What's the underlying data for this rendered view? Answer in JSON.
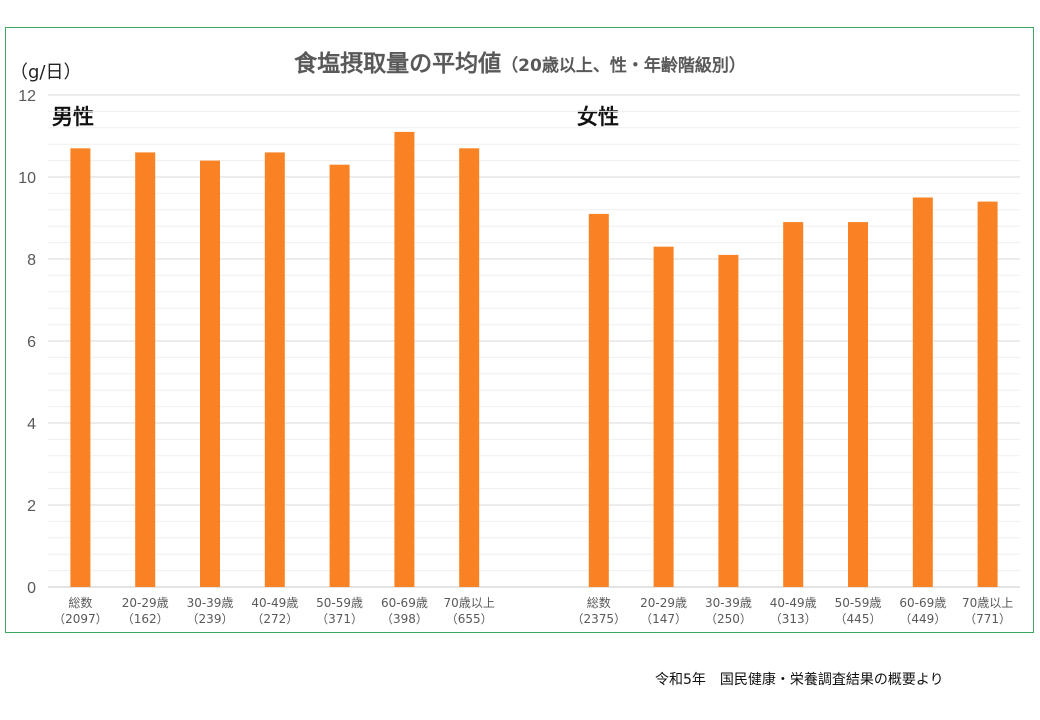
{
  "chart_data": {
    "type": "bar",
    "title": "食塩摂取量の平均値",
    "subtitle": "（20歳以上、性・年齢階級別）",
    "ylabel": "（g/日）",
    "ylim": [
      0,
      12
    ],
    "yticks": [
      0,
      2,
      4,
      6,
      8,
      10,
      12
    ],
    "minor_grid_step": 0.4,
    "grid": true,
    "bar_color": "#f88224",
    "groups": [
      {
        "name": "男性",
        "categories": [
          "総数",
          "20-29歳",
          "30-39歳",
          "40-49歳",
          "50-59歳",
          "60-69歳",
          "70歳以上"
        ],
        "counts": [
          "（2097）",
          "（162）",
          "（239）",
          "（272）",
          "（371）",
          "（398）",
          "（655）"
        ],
        "values": [
          10.7,
          10.6,
          10.4,
          10.6,
          10.3,
          11.1,
          10.7
        ]
      },
      {
        "name": "女性",
        "categories": [
          "総数",
          "20-29歳",
          "30-39歳",
          "40-49歳",
          "50-59歳",
          "60-69歳",
          "70歳以上"
        ],
        "counts": [
          "（2375）",
          "（147）",
          "（250）",
          "（313）",
          "（445）",
          "（449）",
          "（771）"
        ],
        "values": [
          9.1,
          8.3,
          8.1,
          8.9,
          8.9,
          9.5,
          9.4
        ]
      }
    ]
  },
  "source": "令和5年　国民健康・栄養調査結果の概要より"
}
